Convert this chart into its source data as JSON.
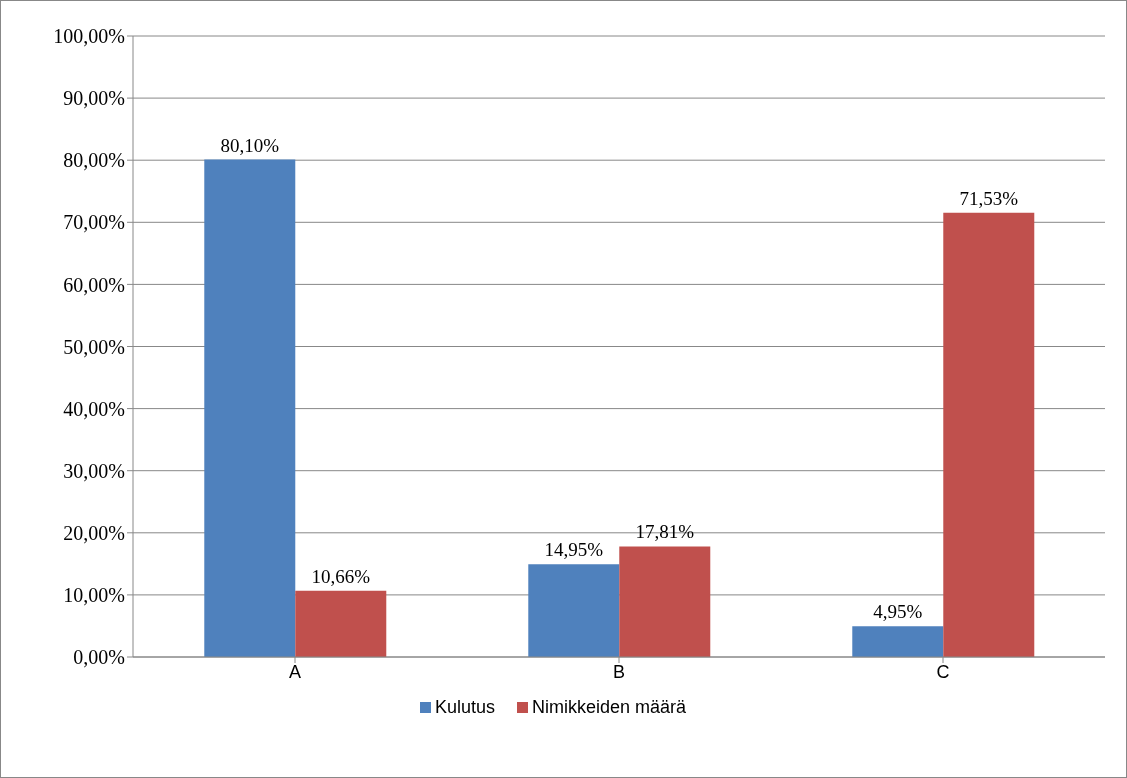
{
  "chart_data": {
    "type": "bar",
    "categories": [
      "A",
      "B",
      "C"
    ],
    "series": [
      {
        "name": "Kulutus",
        "color": "#4f81bd",
        "values": [
          80.1,
          14.95,
          4.95
        ],
        "value_labels": [
          "80,10%",
          "14,95%",
          "4,95%"
        ]
      },
      {
        "name": "Nimikkeiden määrä",
        "color": "#c0504d",
        "values": [
          10.66,
          17.81,
          71.53
        ],
        "value_labels": [
          "10,66%",
          "17,81%",
          "71,53%"
        ]
      }
    ],
    "ylim": [
      0,
      100
    ],
    "yticks": [
      {
        "value": 0,
        "label": "0,00%"
      },
      {
        "value": 10,
        "label": "10,00%"
      },
      {
        "value": 20,
        "label": "20,00%"
      },
      {
        "value": 30,
        "label": "30,00%"
      },
      {
        "value": 40,
        "label": "40,00%"
      },
      {
        "value": 50,
        "label": "50,00%"
      },
      {
        "value": 60,
        "label": "60,00%"
      },
      {
        "value": 70,
        "label": "70,00%"
      },
      {
        "value": 80,
        "label": "80,00%"
      },
      {
        "value": 90,
        "label": "90,00%"
      },
      {
        "value": 100,
        "label": "100,00%"
      }
    ],
    "grid": "y",
    "legend": "bottom"
  }
}
